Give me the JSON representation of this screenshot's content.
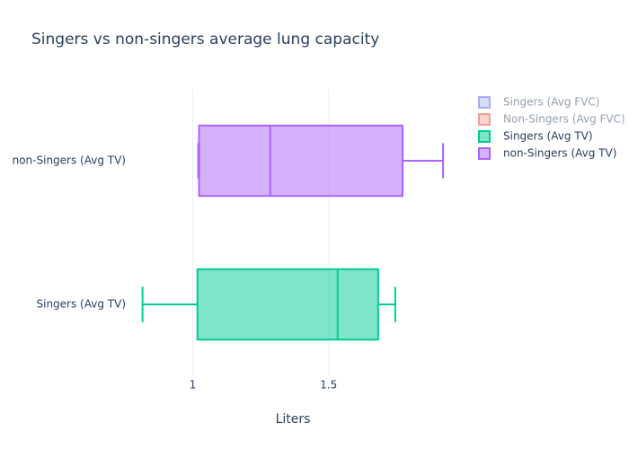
{
  "chart_data": {
    "type": "box",
    "orientation": "horizontal",
    "title": "Singers vs non-singers average lung capacity",
    "x_label": "Liters",
    "categories": [
      "Singers (Avg TV)",
      "non-Singers (Avg TV)"
    ],
    "xlim": [
      0.77,
      2.01
    ],
    "xticks": [
      1,
      1.5
    ],
    "grid": true,
    "legend": "top-right",
    "series": [
      {
        "name": "Singers (Avg FVC)",
        "color": "#636efa",
        "visible": false
      },
      {
        "name": "Non-Singers (Avg FVC)",
        "color": "#ef553b",
        "visible": false
      },
      {
        "name": "Singers (Avg TV)",
        "color": "#00cc96",
        "visible": true,
        "category": 0,
        "lower": 0.815,
        "q1": 1.017,
        "median": 1.533,
        "q3": 1.682,
        "upper": 1.745
      },
      {
        "name": "non-Singers (Avg TV)",
        "color": "#ab63fa",
        "visible": true,
        "category": 1,
        "lower": 1.02,
        "q1": 1.023,
        "median": 1.285,
        "q3": 1.772,
        "upper": 1.921
      }
    ]
  }
}
